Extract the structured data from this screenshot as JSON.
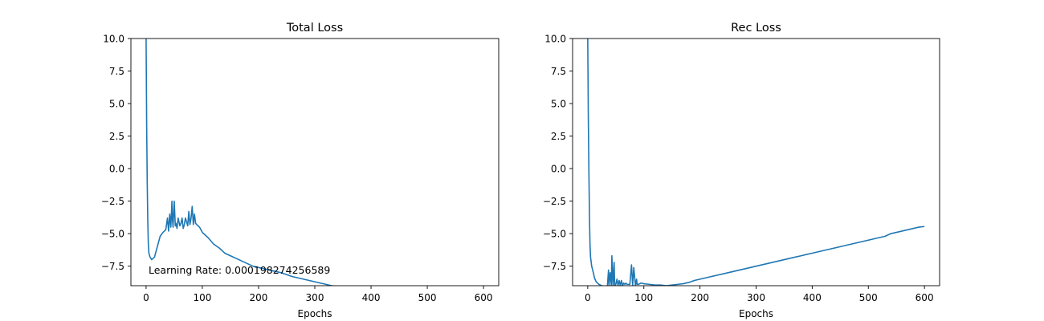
{
  "chart_data": [
    {
      "type": "line",
      "title": "Total Loss",
      "xlabel": "Epochs",
      "ylabel": "",
      "xlim": [
        -27,
        627
      ],
      "ylim": [
        -9.0,
        10.0
      ],
      "xticks": [
        0,
        100,
        200,
        300,
        400,
        500,
        600
      ],
      "yticks": [
        -7.5,
        -5.0,
        -2.5,
        0.0,
        2.5,
        5.0,
        7.5,
        10.0
      ],
      "xtick_labels": [
        "0",
        "100",
        "200",
        "300",
        "400",
        "500",
        "600"
      ],
      "ytick_labels": [
        "−7.5",
        "−5.0",
        "−2.5",
        "0.0",
        "2.5",
        "5.0",
        "7.5",
        "10.0"
      ],
      "annotation": "Learning Rate: 0.000198274256589",
      "grid": false,
      "series": [
        {
          "color": "#1f77b4",
          "x": [
            0,
            1,
            2,
            3,
            4,
            5,
            7,
            10,
            15,
            20,
            25,
            30,
            35,
            38,
            40,
            42,
            44,
            46,
            47,
            48,
            50,
            52,
            53,
            55,
            57,
            60,
            62,
            64,
            66,
            68,
            70,
            74,
            76,
            78,
            80,
            82,
            84,
            86,
            88,
            90,
            95,
            100,
            110,
            120,
            130,
            140,
            150,
            160,
            170,
            180,
            190,
            200,
            210,
            220,
            230,
            240,
            250,
            260,
            270,
            280,
            290,
            300,
            310,
            320,
            330,
            340,
            350
          ],
          "y": [
            10.0,
            3.5,
            -1.0,
            -4.0,
            -5.8,
            -6.5,
            -6.8,
            -7.0,
            -6.8,
            -6.0,
            -5.2,
            -4.9,
            -4.7,
            -3.8,
            -4.8,
            -3.5,
            -4.5,
            -2.5,
            -4.0,
            -4.5,
            -2.5,
            -4.4,
            -4.2,
            -4.6,
            -3.8,
            -4.4,
            -4.2,
            -3.8,
            -4.6,
            -4.3,
            -3.8,
            -4.4,
            -3.3,
            -4.3,
            -3.8,
            -2.9,
            -4.3,
            -3.5,
            -4.2,
            -4.3,
            -4.5,
            -4.9,
            -5.3,
            -5.8,
            -6.1,
            -6.5,
            -6.7,
            -6.9,
            -7.1,
            -7.3,
            -7.5,
            -7.6,
            -7.7,
            -7.8,
            -7.9,
            -8.0,
            -8.15,
            -8.3,
            -8.4,
            -8.5,
            -8.6,
            -8.7,
            -8.8,
            -8.9,
            -9.0,
            -9.05,
            -9.1
          ]
        }
      ]
    },
    {
      "type": "line",
      "title": "Rec Loss",
      "xlabel": "Epochs",
      "ylabel": "",
      "xlim": [
        -27,
        627
      ],
      "ylim": [
        -9.0,
        10.0
      ],
      "xticks": [
        0,
        100,
        200,
        300,
        400,
        500,
        600
      ],
      "yticks": [
        -7.5,
        -5.0,
        -2.5,
        0.0,
        2.5,
        5.0,
        7.5,
        10.0
      ],
      "xtick_labels": [
        "0",
        "100",
        "200",
        "300",
        "400",
        "500",
        "600"
      ],
      "ytick_labels": [
        "−7.5",
        "−5.0",
        "−2.5",
        "0.0",
        "2.5",
        "5.0",
        "7.5",
        "10.0"
      ],
      "grid": false,
      "series": [
        {
          "color": "#1f77b4",
          "x": [
            0,
            1,
            2,
            3,
            4,
            5,
            7,
            10,
            12,
            15,
            20,
            25,
            30,
            35,
            37,
            38,
            40,
            42,
            43,
            45,
            47,
            48,
            50,
            52,
            54,
            56,
            58,
            60,
            62,
            64,
            66,
            68,
            70,
            75,
            78,
            80,
            82,
            85,
            87,
            88,
            90,
            95,
            100,
            110,
            120,
            130,
            140,
            150,
            160,
            170,
            180,
            190,
            200,
            210,
            220,
            230,
            240,
            250,
            260,
            270,
            280,
            290,
            300,
            310,
            320,
            330,
            340,
            350,
            360,
            370,
            380,
            390,
            400,
            410,
            420,
            430,
            440,
            450,
            460,
            470,
            480,
            490,
            500,
            510,
            520,
            530,
            540,
            550,
            560,
            570,
            580,
            590,
            600
          ],
          "y": [
            10.0,
            4.0,
            0.0,
            -3.5,
            -5.8,
            -6.8,
            -7.5,
            -8.0,
            -8.4,
            -8.7,
            -8.9,
            -9.0,
            -9.05,
            -9.05,
            -7.8,
            -9.0,
            -8.0,
            -9.0,
            -6.7,
            -9.0,
            -7.2,
            -9.0,
            -8.9,
            -8.5,
            -9.0,
            -8.6,
            -9.0,
            -8.6,
            -9.0,
            -8.8,
            -8.9,
            -8.8,
            -8.9,
            -8.9,
            -7.4,
            -9.0,
            -7.6,
            -9.0,
            -8.5,
            -8.9,
            -8.9,
            -8.8,
            -8.85,
            -8.9,
            -8.95,
            -8.95,
            -9.0,
            -8.95,
            -8.9,
            -8.85,
            -8.75,
            -8.6,
            -8.5,
            -8.4,
            -8.3,
            -8.2,
            -8.1,
            -8.0,
            -7.9,
            -7.8,
            -7.7,
            -7.6,
            -7.5,
            -7.4,
            -7.3,
            -7.2,
            -7.1,
            -7.0,
            -6.9,
            -6.8,
            -6.7,
            -6.6,
            -6.5,
            -6.4,
            -6.3,
            -6.2,
            -6.1,
            -6.0,
            -5.9,
            -5.8,
            -5.7,
            -5.6,
            -5.5,
            -5.4,
            -5.3,
            -5.2,
            -5.0,
            -4.9,
            -4.8,
            -4.7,
            -4.6,
            -4.5,
            -4.45
          ]
        }
      ]
    }
  ]
}
